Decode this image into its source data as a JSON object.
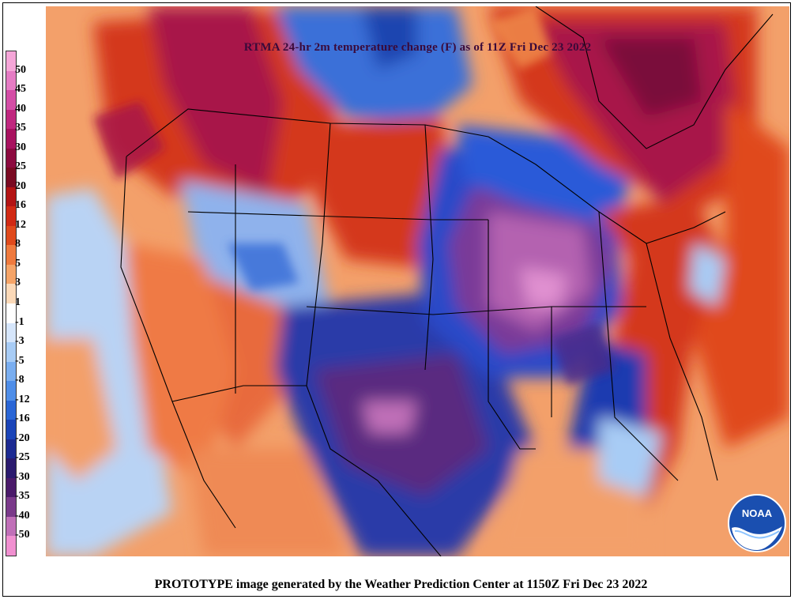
{
  "title": "RTMA 24-hr 2m temperature change (F) as of 11Z Fri Dec 23 2022",
  "footer": "PROTOTYPE image generated by the Weather Prediction Center at 1150Z Fri Dec 23 2022",
  "logo_text": "NOAA",
  "legend": {
    "labels": [
      "50",
      "45",
      "40",
      "35",
      "30",
      "25",
      "20",
      "16",
      "12",
      "8",
      "5",
      "3",
      "1",
      "-1",
      "-3",
      "-5",
      "-8",
      "-12",
      "-16",
      "-20",
      "-25",
      "-30",
      "-35",
      "-40",
      "-50"
    ],
    "colors": [
      "#f5a6d8",
      "#e57cc4",
      "#d44ea6",
      "#c0287f",
      "#a8125f",
      "#8c0a3f",
      "#7a0a22",
      "#b31414",
      "#d12a14",
      "#e04a1c",
      "#ef7a3e",
      "#f5a468",
      "#fbd9b8",
      "#ffffff",
      "#d6e6fb",
      "#a8ccf5",
      "#7aaef0",
      "#4f8ee8",
      "#2a66d6",
      "#1a44b8",
      "#1c2a92",
      "#2a1a6e",
      "#4a1a6a",
      "#7a3a8a",
      "#c070b8",
      "#f090d0"
    ]
  },
  "palette": {
    "warm_hot": "#b0123f",
    "warm": "#d83a18",
    "warm_light": "#f08a4c",
    "cool_light": "#a8ccf5",
    "cool": "#3a6fd8",
    "cold": "#1c2a92",
    "colder": "#5a2a78",
    "coldest": "#c070b8"
  }
}
